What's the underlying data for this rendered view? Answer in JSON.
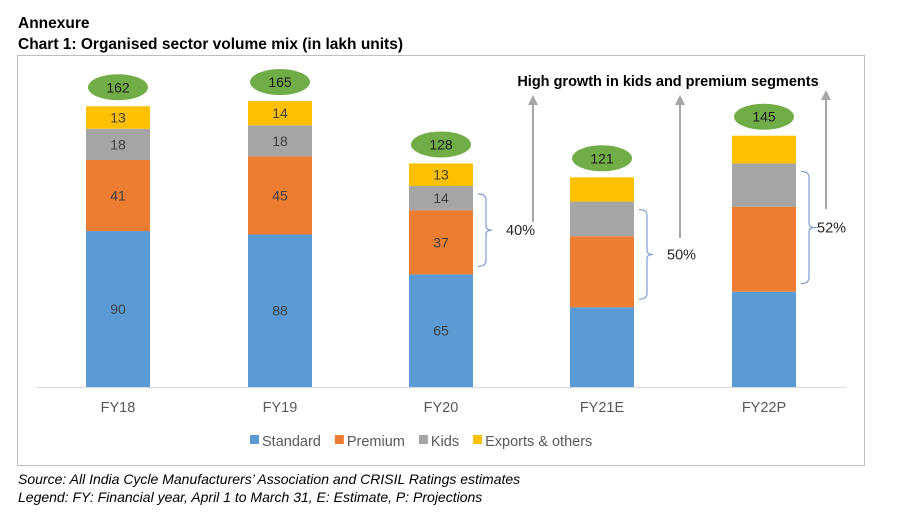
{
  "header": {
    "section": "Annexure",
    "title": "Chart 1: Organised sector volume mix (in lakh units)"
  },
  "footer": {
    "source": "Source: All India Cycle Manufacturers’ Association and CRISIL Ratings estimates",
    "legend_note": "Legend: FY: Financial year, April 1 to March 31, E: Estimate, P: Projections"
  },
  "chart_data": {
    "type": "bar",
    "stacked": true,
    "title": "Chart 1: Organised sector volume mix (in lakh units)",
    "xlabel": "",
    "ylabel": "",
    "categories": [
      "FY18",
      "FY19",
      "FY20",
      "FY21E",
      "FY22P"
    ],
    "series": [
      {
        "name": "Standard",
        "color": "#5B9BD5",
        "values": [
          90,
          88,
          65,
          46,
          55
        ],
        "labels": [
          "90",
          "88",
          "65",
          "",
          ""
        ]
      },
      {
        "name": "Premium",
        "color": "#ED7D31",
        "values": [
          41,
          45,
          37,
          41,
          49
        ],
        "labels": [
          "41",
          "45",
          "37",
          "",
          ""
        ]
      },
      {
        "name": "Kids",
        "color": "#A5A5A5",
        "values": [
          18,
          18,
          14,
          20,
          25
        ],
        "labels": [
          "18",
          "18",
          "14",
          "",
          ""
        ]
      },
      {
        "name": "Exports & others",
        "color": "#FFC000",
        "values": [
          13,
          14,
          13,
          14,
          16
        ],
        "labels": [
          "13",
          "14",
          "13",
          "",
          ""
        ]
      }
    ],
    "totals": [
      162,
      165,
      128,
      121,
      145
    ],
    "total_badge_color": "#70AD47",
    "ylim": [
      0,
      165
    ],
    "grid": false,
    "legend": {
      "position": "bottom",
      "entries": [
        "Standard",
        "Premium",
        "Kids",
        "Exports & others"
      ]
    },
    "annotations": {
      "headline": "High growth in kids and premium segments",
      "share_brackets": [
        {
          "category": "FY20",
          "label": "40%"
        },
        {
          "category": "FY21E",
          "label": "50%"
        },
        {
          "category": "FY22P",
          "label": "52%"
        }
      ]
    }
  }
}
